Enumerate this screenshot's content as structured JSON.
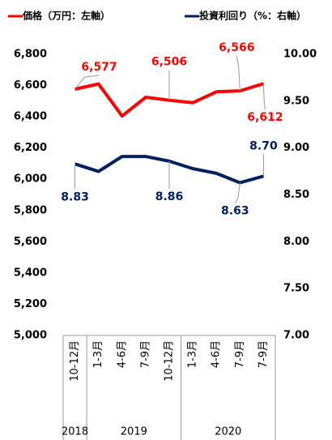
{
  "chart_data": {
    "type": "line",
    "categories": [
      "10-12月",
      "1-3月",
      "4-6月",
      "7-9月",
      "10-12月",
      "1-3月",
      "4-6月",
      "7-9月",
      "7-9月"
    ],
    "groups": [
      {
        "label": "2018",
        "span": 1
      },
      {
        "label": "2019",
        "span": 4
      },
      {
        "label": "2020",
        "span": 4
      }
    ],
    "series": [
      {
        "name": "価格（万円：左軸）",
        "color": "#ff0000",
        "values": [
          6577,
          6610,
          6405,
          6525,
          6506,
          6490,
          6560,
          6566,
          6612
        ],
        "value_labels": [
          "6,577",
          null,
          null,
          null,
          "6,506",
          null,
          null,
          "6,566",
          "6,612"
        ]
      },
      {
        "name": "投資利回り（%：右軸）",
        "color": "#002060",
        "axis": "y2",
        "values": [
          8.83,
          8.75,
          8.91,
          8.91,
          8.86,
          8.78,
          8.73,
          8.63,
          8.7
        ],
        "value_labels": [
          "8.83",
          null,
          null,
          null,
          "8.86",
          null,
          null,
          "8.63",
          "8.70"
        ]
      }
    ],
    "ylim": [
      5000,
      6800
    ],
    "yticks": [
      {
        "value": 5000,
        "label": "5,000"
      },
      {
        "value": 5200,
        "label": "5,200"
      },
      {
        "value": 5400,
        "label": "5,400"
      },
      {
        "value": 5600,
        "label": "5,600"
      },
      {
        "value": 5800,
        "label": "5,800"
      },
      {
        "value": 6000,
        "label": "6,000"
      },
      {
        "value": 6200,
        "label": "6,200"
      },
      {
        "value": 6400,
        "label": "6,400"
      },
      {
        "value": 6600,
        "label": "6,600"
      },
      {
        "value": 6800,
        "label": "6,800"
      }
    ],
    "y2lim": [
      7,
      10
    ],
    "y2ticks": [
      {
        "value": 7,
        "label": "7.00"
      },
      {
        "value": 7.5,
        "label": "7.50"
      },
      {
        "value": 8,
        "label": "8.00"
      },
      {
        "value": 8.5,
        "label": "8.50"
      },
      {
        "value": 9,
        "label": "9.00"
      },
      {
        "value": 9.5,
        "label": "9.50"
      },
      {
        "value": 10,
        "label": "10.00"
      }
    ],
    "legend": "top"
  }
}
